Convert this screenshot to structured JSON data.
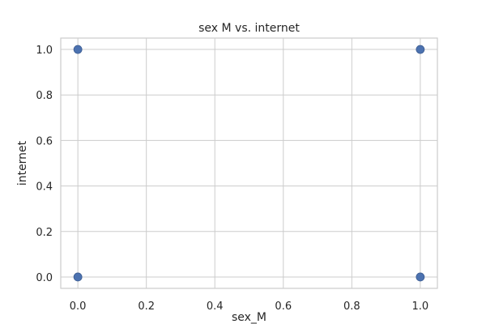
{
  "chart_data": {
    "type": "scatter",
    "title": "sex M vs. internet",
    "xlabel": "sex_M",
    "ylabel": "internet",
    "xlim": [
      -0.05,
      1.05
    ],
    "ylim": [
      -0.05,
      1.05
    ],
    "xticks": [
      0.0,
      0.2,
      0.4,
      0.6,
      0.8,
      1.0
    ],
    "xtick_labels": [
      "0.0",
      "0.2",
      "0.4",
      "0.6",
      "0.8",
      "1.0"
    ],
    "yticks": [
      0.0,
      0.2,
      0.4,
      0.6,
      0.8,
      1.0
    ],
    "ytick_labels": [
      "0.0",
      "0.2",
      "0.4",
      "0.6",
      "0.8",
      "1.0"
    ],
    "grid": true,
    "series": [
      {
        "x": [
          0,
          0,
          1,
          1
        ],
        "y": [
          0,
          1,
          0,
          1
        ]
      }
    ]
  },
  "colors": {
    "point": "#4c72b0",
    "grid": "#cccccc",
    "text": "#262626"
  }
}
